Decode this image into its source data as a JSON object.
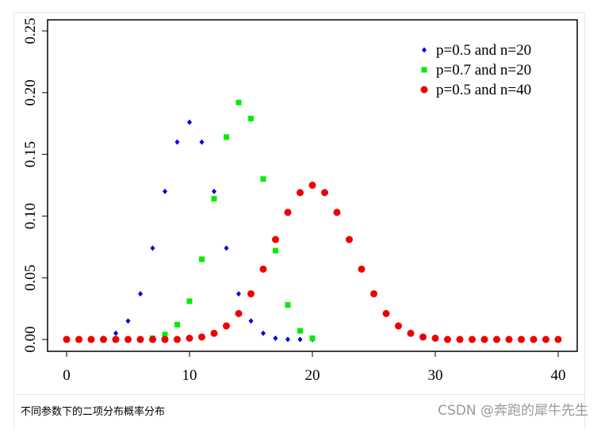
{
  "chart_data": {
    "type": "scatter",
    "xlim": [
      -1.55,
      41.55
    ],
    "ylim": [
      -0.0096,
      0.259
    ],
    "xticks": [
      0,
      10,
      20,
      30,
      40
    ],
    "yticks": [
      {
        "value": 0,
        "label": "0.00"
      },
      {
        "value": 0.05,
        "label": "0.05"
      },
      {
        "value": 0.1,
        "label": "0.10"
      },
      {
        "value": 0.15,
        "label": "0.15"
      },
      {
        "value": 0.2,
        "label": "0.20"
      },
      {
        "value": 0.25,
        "label": "0.25"
      }
    ],
    "legend": "upper right",
    "series": [
      {
        "name": "p=0.5 and n=20",
        "color": "#0000dd",
        "marker": "diamond",
        "x": [
          0,
          1,
          2,
          3,
          4,
          5,
          6,
          7,
          8,
          9,
          10,
          11,
          12,
          13,
          14,
          15,
          16,
          17,
          18,
          19,
          20
        ],
        "values": [
          0,
          0,
          0,
          0.001,
          0.005,
          0.015,
          0.037,
          0.074,
          0.12,
          0.16,
          0.176,
          0.16,
          0.12,
          0.074,
          0.037,
          0.015,
          0.005,
          0.001,
          0,
          0,
          0
        ]
      },
      {
        "name": "p=0.7 and n=20",
        "color": "#00ee00",
        "marker": "square",
        "x": [
          0,
          1,
          2,
          3,
          4,
          5,
          6,
          7,
          8,
          9,
          10,
          11,
          12,
          13,
          14,
          15,
          16,
          17,
          18,
          19,
          20
        ],
        "values": [
          0,
          0,
          0,
          0,
          0,
          0,
          0,
          0.001,
          0.004,
          0.012,
          0.031,
          0.065,
          0.114,
          0.164,
          0.192,
          0.179,
          0.13,
          0.072,
          0.028,
          0.007,
          0.001
        ]
      },
      {
        "name": "p=0.5 and n=40",
        "color": "#ee0000",
        "marker": "circle",
        "x": [
          0,
          1,
          2,
          3,
          4,
          5,
          6,
          7,
          8,
          9,
          10,
          11,
          12,
          13,
          14,
          15,
          16,
          17,
          18,
          19,
          20,
          21,
          22,
          23,
          24,
          25,
          26,
          27,
          28,
          29,
          30,
          31,
          32,
          33,
          34,
          35,
          36,
          37,
          38,
          39,
          40
        ],
        "values": [
          0,
          0,
          0,
          0,
          0,
          0,
          0,
          0,
          0,
          0,
          0.001,
          0.002,
          0.005,
          0.011,
          0.021,
          0.037,
          0.057,
          0.081,
          0.103,
          0.119,
          0.125,
          0.119,
          0.103,
          0.081,
          0.057,
          0.037,
          0.021,
          0.011,
          0.005,
          0.002,
          0.001,
          0,
          0,
          0,
          0,
          0,
          0,
          0,
          0,
          0,
          0
        ]
      }
    ]
  },
  "caption": "不同参数下的二项分布概率分布",
  "watermark": "CSDN @奔跑的犀牛先生"
}
